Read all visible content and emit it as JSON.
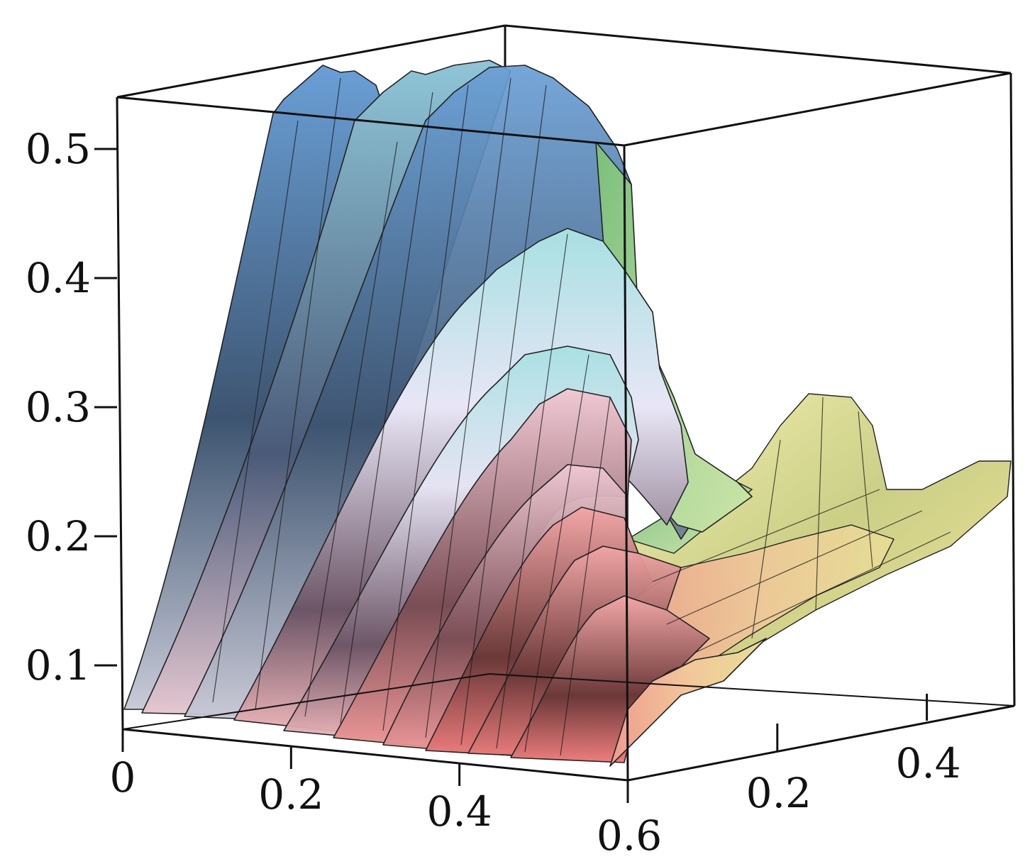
{
  "chart_data": {
    "type": "surface3d",
    "title": "",
    "z_ticks": [
      "0.1",
      "0.2",
      "0.3",
      "0.4",
      "0.5"
    ],
    "x_ticks": [
      "0",
      "0.2",
      "0.4",
      "0.6"
    ],
    "y_ticks": [
      "0.2",
      "0.4"
    ],
    "x_range": [
      0,
      0.6
    ],
    "y_range": [
      0,
      0.5
    ],
    "z_range": [
      0.05,
      0.55
    ],
    "ridges": [
      {
        "x": 0.04,
        "peak": 0.53
      },
      {
        "x": 0.13,
        "peak": 0.53
      },
      {
        "x": 0.19,
        "peak": 0.53
      },
      {
        "x": 0.24,
        "peak": 0.52
      },
      {
        "x": 0.3,
        "peak": 0.48
      },
      {
        "x": 0.35,
        "peak": 0.4
      },
      {
        "x": 0.39,
        "peak": 0.36
      },
      {
        "x": 0.44,
        "peak": 0.31
      },
      {
        "x": 0.48,
        "peak": 0.27
      },
      {
        "x": 0.52,
        "peak": 0.21
      },
      {
        "x": 0.55,
        "peak": 0.18
      },
      {
        "x": 0.58,
        "peak": 0.16
      }
    ],
    "colormap": [
      "#5f93c9",
      "#7fb2d3",
      "#a9a3c7",
      "#e9c6d8",
      "#e98f8f",
      "#9fcf7a",
      "#e8e49a"
    ]
  }
}
